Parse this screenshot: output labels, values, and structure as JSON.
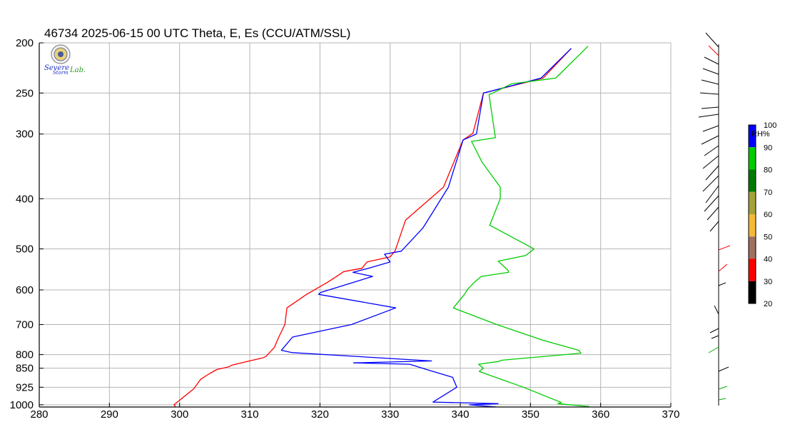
{
  "header": {
    "title": "46734  2025-06-15 00 UTC  Theta, E, Es (CCU/ATM/SSL)"
  },
  "logo": {
    "line1": "Severe",
    "line2": "Storm",
    "line3": "Lab."
  },
  "colorbar": {
    "label": "RH%",
    "ticks": [
      "100",
      "90",
      "80",
      "70",
      "60",
      "50",
      "40",
      "30",
      "20"
    ],
    "colors": [
      "#0000ff",
      "#00cc00",
      "#007a00",
      "#a3a33a",
      "#f5b93a",
      "#a07060",
      "#ff0000",
      "#000000"
    ]
  },
  "chart_data": {
    "type": "line",
    "title": "46734  2025-06-15 00 UTC  Theta, E, Es (CCU/ATM/SSL)",
    "xlabel": "",
    "ylabel": "",
    "xlim": [
      280,
      370
    ],
    "ylim": [
      1010,
      200
    ],
    "y_scale": "log",
    "grid": true,
    "x_ticks": [
      "280",
      "290",
      "300",
      "310",
      "320",
      "330",
      "340",
      "350",
      "360",
      "370"
    ],
    "y_ticks": [
      "200",
      "250",
      "300",
      "400",
      "500",
      "600",
      "700",
      "800",
      "850",
      "925",
      "1000"
    ],
    "series": [
      {
        "color": "#ff0000",
        "points": [
          [
            299.4,
            1008
          ],
          [
            299.2,
            1000
          ],
          [
            299.6,
            990
          ],
          [
            302,
            932
          ],
          [
            303,
            893
          ],
          [
            304.3,
            870
          ],
          [
            305.3,
            855
          ],
          [
            307,
            845
          ],
          [
            307.5,
            838
          ],
          [
            311.8,
            812
          ],
          [
            312.3,
            807
          ],
          [
            313.5,
            775
          ],
          [
            314.1,
            742
          ],
          [
            315,
            700
          ],
          [
            315.3,
            650
          ],
          [
            318.1,
            612
          ],
          [
            320.9,
            582
          ],
          [
            322.3,
            566
          ],
          [
            323.4,
            553
          ],
          [
            326,
            545
          ],
          [
            326.7,
            530
          ],
          [
            330,
            518
          ],
          [
            330.7,
            505
          ],
          [
            332.2,
            440
          ],
          [
            337.6,
            380
          ],
          [
            340.4,
            308
          ],
          [
            341.8,
            299
          ],
          [
            343.3,
            250
          ],
          [
            351.8,
            234
          ],
          [
            355.8,
            205
          ]
        ]
      },
      {
        "color": "#0000ff",
        "points": [
          [
            345.1,
            1010
          ],
          [
            341.3,
            1000
          ],
          [
            345.4,
            995
          ],
          [
            336.1,
            988
          ],
          [
            339.5,
            925
          ],
          [
            338.9,
            885
          ],
          [
            335.2,
            855
          ],
          [
            332.8,
            835
          ],
          [
            324.8,
            830
          ],
          [
            335.9,
            823
          ],
          [
            316,
            793
          ],
          [
            314.5,
            785
          ],
          [
            316.1,
            740
          ],
          [
            324.5,
            700
          ],
          [
            330.8,
            650
          ],
          [
            319.8,
            612
          ],
          [
            320.1,
            607
          ],
          [
            327.5,
            565
          ],
          [
            324.7,
            555
          ],
          [
            326.9,
            545
          ],
          [
            330,
            530
          ],
          [
            329.2,
            512
          ],
          [
            331.6,
            505
          ],
          [
            334.7,
            455
          ],
          [
            338.3,
            380
          ],
          [
            340.4,
            308
          ],
          [
            342.3,
            300
          ],
          [
            343.3,
            250
          ],
          [
            351.5,
            234
          ],
          [
            355.8,
            205
          ]
        ]
      },
      {
        "color": "#00cc00",
        "points": [
          [
            358.4,
            1008
          ],
          [
            353.9,
            995
          ],
          [
            354.4,
            990
          ],
          [
            349,
            925
          ],
          [
            344.5,
            880
          ],
          [
            342.7,
            862
          ],
          [
            343.3,
            850
          ],
          [
            342.6,
            835
          ],
          [
            345.4,
            825
          ],
          [
            346,
            820
          ],
          [
            357.2,
            795
          ],
          [
            356.9,
            785
          ],
          [
            351.7,
            750
          ],
          [
            345.2,
            700
          ],
          [
            339,
            650
          ],
          [
            340.6,
            612
          ],
          [
            341.1,
            597
          ],
          [
            342,
            580
          ],
          [
            343,
            565
          ],
          [
            346.9,
            555
          ],
          [
            346.8,
            550
          ],
          [
            345.4,
            528
          ],
          [
            349.3,
            515
          ],
          [
            350.5,
            500
          ],
          [
            344.2,
            450
          ],
          [
            345.7,
            400
          ],
          [
            345.7,
            380
          ],
          [
            343.1,
            340
          ],
          [
            341.6,
            310
          ],
          [
            345,
            305
          ],
          [
            344.1,
            252
          ],
          [
            347.3,
            240
          ],
          [
            353.6,
            234
          ],
          [
            358.2,
            203
          ]
        ]
      }
    ]
  }
}
